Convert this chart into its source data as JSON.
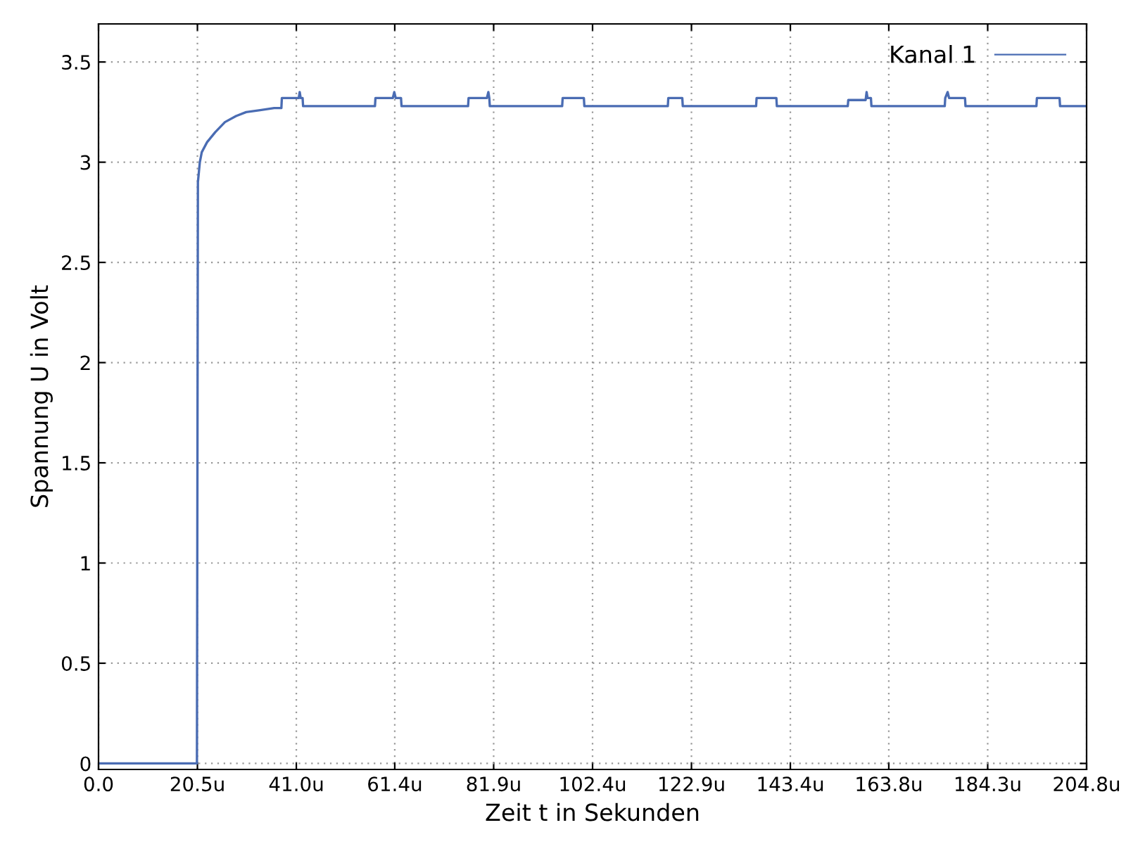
{
  "chart_data": {
    "type": "line",
    "xlabel": "Zeit t in Sekunden",
    "ylabel": "Spannung U in Volt",
    "xlim": [
      0,
      204.8
    ],
    "ylim": [
      -0.03,
      3.69
    ],
    "xticks": [
      {
        "value": 0,
        "label": "0.0"
      },
      {
        "value": 20.5,
        "label": "20.5u"
      },
      {
        "value": 41.0,
        "label": "41.0u"
      },
      {
        "value": 61.4,
        "label": "61.4u"
      },
      {
        "value": 81.9,
        "label": "81.9u"
      },
      {
        "value": 102.4,
        "label": "102.4u"
      },
      {
        "value": 122.9,
        "label": "122.9u"
      },
      {
        "value": 143.4,
        "label": "143.4u"
      },
      {
        "value": 163.8,
        "label": "163.8u"
      },
      {
        "value": 184.3,
        "label": "184.3u"
      },
      {
        "value": 204.8,
        "label": "204.8u"
      }
    ],
    "yticks": [
      0,
      0.5,
      1,
      1.5,
      2,
      2.5,
      3,
      3.5
    ],
    "grid": true,
    "legend": "top right",
    "line_style": "solid",
    "marker": "none",
    "series": [
      {
        "name": "Kanal 1",
        "color": "#4a6cb3",
        "x": [
          0,
          5,
          10,
          15,
          20.4,
          20.6,
          21.0,
          21.4,
          22.5,
          24.2,
          26.2,
          28.5,
          30.6,
          33.5,
          36.4,
          37.9,
          38.0,
          41.5,
          41.7,
          41.9,
          42.3,
          42.4,
          57.3,
          57.4,
          61.0,
          61.3,
          61.6,
          62.7,
          62.8,
          76.6,
          76.7,
          80.5,
          80.8,
          81.0,
          81.1,
          96.1,
          96.2,
          100.6,
          100.7,
          118.0,
          118.1,
          121.0,
          121.1,
          136.3,
          136.4,
          140.5,
          140.6,
          155.3,
          155.4,
          159.0,
          159.2,
          159.4,
          160.1,
          160.2,
          175.4,
          175.5,
          176.0,
          176.3,
          179.6,
          179.7,
          194.4,
          194.5,
          199.2,
          199.3,
          204.8
        ],
        "values": [
          0,
          0,
          0,
          0,
          0,
          2.9,
          3.0,
          3.05,
          3.1,
          3.15,
          3.2,
          3.23,
          3.25,
          3.26,
          3.27,
          3.27,
          3.32,
          3.32,
          3.35,
          3.32,
          3.32,
          3.28,
          3.28,
          3.32,
          3.32,
          3.35,
          3.32,
          3.32,
          3.28,
          3.28,
          3.32,
          3.32,
          3.35,
          3.32,
          3.28,
          3.28,
          3.32,
          3.32,
          3.28,
          3.28,
          3.32,
          3.32,
          3.28,
          3.28,
          3.32,
          3.32,
          3.28,
          3.28,
          3.31,
          3.31,
          3.35,
          3.32,
          3.32,
          3.28,
          3.28,
          3.32,
          3.35,
          3.32,
          3.32,
          3.28,
          3.28,
          3.32,
          3.32,
          3.28,
          3.28
        ]
      }
    ]
  }
}
